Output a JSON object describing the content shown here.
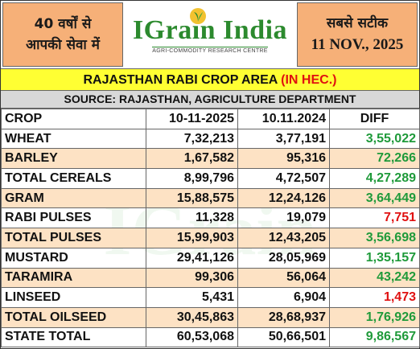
{
  "header": {
    "left_line1": "40 वर्षों से",
    "left_line2": "आपकी सेवा में",
    "brand": "IGrain India",
    "tagline": "AGRI-COMMODITY RESEARCH CENTRE",
    "right_line1": "सबसे सटीक",
    "right_date": "11 NOV., 2025"
  },
  "title": {
    "main": "RAJASTHAN RABI CROP AREA",
    "unit": "(IN HEC.)"
  },
  "source": "SOURCE: RAJASTHAN, AGRICULTURE DEPARTMENT",
  "table": {
    "headers": [
      "CROP",
      "10-11-2025",
      "10.11.2024",
      "DIFF"
    ],
    "rows": [
      {
        "crop": "WHEAT",
        "y2025": "7,32,213",
        "y2024": "3,77,191",
        "diff": "3,55,022",
        "sign": "pos"
      },
      {
        "crop": "BARLEY",
        "y2025": "1,67,582",
        "y2024": "95,316",
        "diff": "72,266",
        "sign": "pos"
      },
      {
        "crop": "TOTAL CEREALS",
        "y2025": "8,99,796",
        "y2024": "4,72,507",
        "diff": "4,27,289",
        "sign": "pos"
      },
      {
        "crop": "GRAM",
        "y2025": "15,88,575",
        "y2024": "12,24,126",
        "diff": "3,64,449",
        "sign": "pos"
      },
      {
        "crop": "RABI PULSES",
        "y2025": "11,328",
        "y2024": "19,079",
        "diff": "7,751",
        "sign": "neg"
      },
      {
        "crop": "TOTAL PULSES",
        "y2025": "15,99,903",
        "y2024": "12,43,205",
        "diff": "3,56,698",
        "sign": "pos"
      },
      {
        "crop": "MUSTARD",
        "y2025": "29,41,126",
        "y2024": "28,05,969",
        "diff": "1,35,157",
        "sign": "pos"
      },
      {
        "crop": "TARAMIRA",
        "y2025": "99,306",
        "y2024": "56,064",
        "diff": "43,242",
        "sign": "pos"
      },
      {
        "crop": "LINSEED",
        "y2025": "5,431",
        "y2024": "6,904",
        "diff": "1,473",
        "sign": "neg"
      },
      {
        "crop": "TOTAL OILSEED",
        "y2025": "30,45,863",
        "y2024": "28,68,937",
        "diff": "1,76,926",
        "sign": "pos"
      },
      {
        "crop": "STATE TOTAL",
        "y2025": "60,53,068",
        "y2024": "50,66,501",
        "diff": "9,86,567",
        "sign": "pos"
      }
    ]
  },
  "colors": {
    "header_box": "#f6b078",
    "title_bg": "#ffff33",
    "source_bg": "#d8d8d8",
    "alt_row": "#fde2c4",
    "positive": "#1f9a3a",
    "negative": "#e01010",
    "brand": "#2c8a2e"
  },
  "icons": {
    "logo": "wheat-leaf-icon"
  }
}
